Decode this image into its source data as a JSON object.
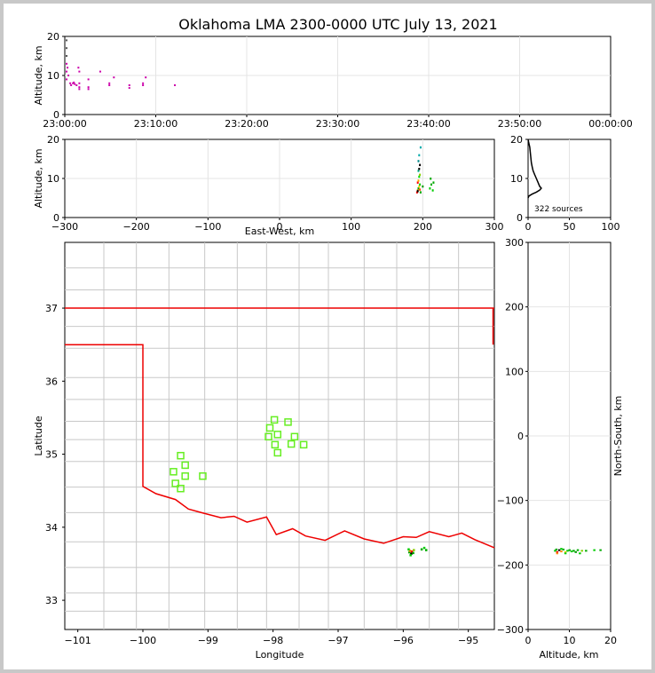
{
  "chart_data": {
    "type": "scatter",
    "title": "Oklahoma LMA 2300-0000 UTC July 13, 2021",
    "source_count_label": "322 sources",
    "time_height": {
      "ylabel": "Altitude, km",
      "ylim": [
        0,
        20
      ],
      "yticks": [
        "0",
        "10",
        "20"
      ],
      "xticks": [
        "23:00:00",
        "23:10:00",
        "23:20:00",
        "23:30:00",
        "23:40:00",
        "23:50:00",
        "00:00:00"
      ],
      "xlim_minutes": [
        0,
        60
      ],
      "points": [
        [
          0.1,
          19
        ],
        [
          0.1,
          17
        ],
        [
          0.1,
          15
        ],
        [
          0.1,
          13
        ],
        [
          0.1,
          11
        ],
        [
          0.1,
          9
        ],
        [
          0.2,
          12
        ],
        [
          0.3,
          10
        ],
        [
          0.5,
          8
        ],
        [
          0.6,
          7.5
        ],
        [
          0.8,
          8
        ],
        [
          0.9,
          8.2
        ],
        [
          1,
          7.8
        ],
        [
          1.2,
          7.5
        ],
        [
          1.4,
          12
        ],
        [
          1.5,
          11
        ],
        [
          1.5,
          8
        ],
        [
          1.5,
          7
        ],
        [
          1.5,
          6.5
        ],
        [
          2.5,
          9
        ],
        [
          2.5,
          7
        ],
        [
          2.5,
          6.5
        ],
        [
          3.8,
          11
        ],
        [
          4.8,
          8
        ],
        [
          4.8,
          7.5
        ],
        [
          5.3,
          9.5
        ],
        [
          7.0,
          7.5
        ],
        [
          7.0,
          6.8
        ],
        [
          8.5,
          8
        ],
        [
          8.5,
          7.5
        ],
        [
          8.8,
          9.5
        ],
        [
          12.0,
          7.5
        ]
      ]
    },
    "ew_height": {
      "xlabel": "East-West, km",
      "ylabel": "Altitude, km",
      "xlim": [
        -300,
        300
      ],
      "ylim": [
        0,
        20
      ],
      "xticks": [
        "−300",
        "−200",
        "−100",
        "0",
        "100",
        "200",
        "300"
      ],
      "yticks": [
        "0",
        "10",
        "20"
      ],
      "points": [
        [
          192,
          6.5,
          "#ff0000"
        ],
        [
          193,
          7,
          "#ff8800"
        ],
        [
          194,
          7.5,
          "#00aa00"
        ],
        [
          195,
          8,
          "#ffcc00"
        ],
        [
          196,
          8.5,
          "#00cc00"
        ],
        [
          193,
          9,
          "#ff0000"
        ],
        [
          194,
          9.5,
          "#ffaa00"
        ],
        [
          195,
          10.5,
          "#00dd00"
        ],
        [
          196,
          11,
          "#88cc00"
        ],
        [
          194,
          12,
          "#00aa88"
        ],
        [
          195,
          12.5,
          "#000000"
        ],
        [
          196,
          13.5,
          "#000000"
        ],
        [
          194,
          14.5,
          "#008888"
        ],
        [
          195,
          16,
          "#00aaaa"
        ],
        [
          197,
          18,
          "#00aaaa"
        ],
        [
          193,
          6.8,
          "#000000"
        ],
        [
          196,
          7.2,
          "#ff4400"
        ],
        [
          197,
          6.5,
          "#00aa00"
        ],
        [
          200,
          8,
          "#009900"
        ],
        [
          210,
          7.5,
          "#00cc00"
        ],
        [
          212,
          8.5,
          "#00aa00"
        ],
        [
          215,
          9,
          "#00aa00"
        ],
        [
          211,
          10,
          "#00aa00"
        ],
        [
          214,
          7,
          "#00cc00"
        ]
      ]
    },
    "histogram": {
      "xlim": [
        0,
        100
      ],
      "ylim": [
        0,
        20
      ],
      "xticks": [
        "0",
        "50",
        "100"
      ],
      "yticks": [
        "0",
        "10",
        "20"
      ],
      "profile": [
        [
          0,
          20
        ],
        [
          1,
          19
        ],
        [
          2,
          18
        ],
        [
          3,
          16
        ],
        [
          4,
          14
        ],
        [
          5,
          13
        ],
        [
          6,
          12
        ],
        [
          8,
          11
        ],
        [
          10,
          10
        ],
        [
          12,
          9
        ],
        [
          14,
          8
        ],
        [
          16,
          7.5
        ],
        [
          14,
          7
        ],
        [
          10,
          6.5
        ],
        [
          5,
          6
        ],
        [
          1,
          5.5
        ],
        [
          0,
          5
        ]
      ]
    },
    "plan_view": {
      "xlabel": "Longitude",
      "ylabel": "Latitude",
      "xlim": [
        -101.2,
        -94.6
      ],
      "ylim": [
        32.6,
        37.9
      ],
      "xticks": [
        "−101",
        "−100",
        "−99",
        "−98",
        "−97",
        "−96",
        "−95"
      ],
      "yticks": [
        "33",
        "34",
        "35",
        "36",
        "37"
      ],
      "stations": [
        [
          -97.98,
          35.47
        ],
        [
          -98.05,
          35.36
        ],
        [
          -97.93,
          35.27
        ],
        [
          -98.07,
          35.24
        ],
        [
          -97.97,
          35.13
        ],
        [
          -97.93,
          35.02
        ],
        [
          -97.77,
          35.44
        ],
        [
          -97.67,
          35.24
        ],
        [
          -97.72,
          35.14
        ],
        [
          -97.53,
          35.13
        ],
        [
          -99.42,
          34.98
        ],
        [
          -99.35,
          34.85
        ],
        [
          -99.53,
          34.76
        ],
        [
          -99.35,
          34.7
        ],
        [
          -99.08,
          34.7
        ],
        [
          -99.5,
          34.6
        ],
        [
          -99.42,
          34.53
        ]
      ],
      "sources": [
        [
          -95.91,
          33.66,
          "#00aa00"
        ],
        [
          -95.9,
          33.68,
          "#ff8800"
        ],
        [
          -95.88,
          33.64,
          "#000000"
        ],
        [
          -95.92,
          33.7,
          "#00cc00"
        ],
        [
          -95.87,
          33.67,
          "#ff0000"
        ],
        [
          -95.85,
          33.65,
          "#00aa00"
        ],
        [
          -95.84,
          33.69,
          "#88cc00"
        ],
        [
          -95.89,
          33.62,
          "#00cc00"
        ],
        [
          -95.72,
          33.7,
          "#00aa00"
        ],
        [
          -95.68,
          33.72,
          "#00cc00"
        ],
        [
          -95.65,
          33.69,
          "#00aa00"
        ]
      ]
    },
    "ns_height": {
      "xlabel": "Altitude, km",
      "ylabel": "North-South, km",
      "xlim": [
        0,
        20
      ],
      "ylim": [
        -300,
        300
      ],
      "xticks": [
        "0",
        "10",
        "20"
      ],
      "yticks": [
        "−300",
        "−200",
        "−100",
        "0",
        "100",
        "200",
        "300"
      ],
      "points": [
        [
          6.5,
          -178,
          "#00cc00"
        ],
        [
          7,
          -180,
          "#ff0000"
        ],
        [
          7.5,
          -177,
          "#000000"
        ],
        [
          8,
          -179,
          "#ff8800"
        ],
        [
          8.5,
          -176,
          "#00aa00"
        ],
        [
          9,
          -180,
          "#ffcc00"
        ],
        [
          9.5,
          -178,
          "#00cc00"
        ],
        [
          10,
          -177,
          "#00aa00"
        ],
        [
          10.5,
          -179,
          "#00cc00"
        ],
        [
          11,
          -178,
          "#00aa00"
        ],
        [
          11.5,
          -180,
          "#009900"
        ],
        [
          12,
          -177,
          "#00aa00"
        ],
        [
          12.5,
          -182,
          "#00cc00"
        ],
        [
          13,
          -178,
          "#88cc00"
        ],
        [
          14,
          -178,
          "#00aa00"
        ],
        [
          16,
          -177,
          "#00cc00"
        ],
        [
          17.5,
          -177,
          "#00aa00"
        ],
        [
          7,
          -182,
          "#ff8800"
        ],
        [
          8,
          -175,
          "#00cc00"
        ],
        [
          6.8,
          -176,
          "#00aa00"
        ],
        [
          9,
          -182,
          "#00cc00"
        ]
      ]
    }
  }
}
